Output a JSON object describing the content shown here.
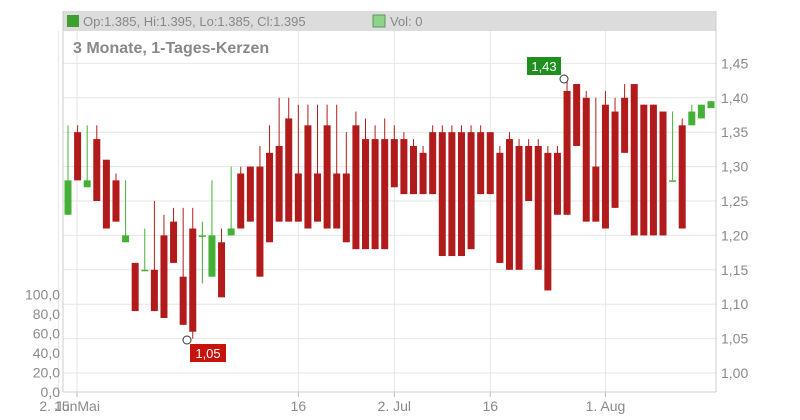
{
  "header": {
    "ohlc_text": "Op:1.385, Hi:1.395, Lo:1.385, Cl:1.395",
    "volume_text": "Vol: 0",
    "period_label": "3 Monate, 1-Tages-Kerzen"
  },
  "annotations": {
    "high_label": "1,43",
    "low_label": "1,05"
  },
  "colors": {
    "up": "#44b035",
    "down": "#b11b1b",
    "grid": "#e6e6e6",
    "label_high_bg": "#1f8f1f",
    "label_low_bg": "#c8120c"
  },
  "chart_data": {
    "type": "candlestick",
    "x_ticks": [
      "15. Mai",
      "2. Jun",
      "16",
      "2. Jul",
      "16",
      "1. Aug"
    ],
    "y_ticks": [
      "1,45",
      "1,40",
      "1,35",
      "1,30",
      "1,25",
      "1,20",
      "1,15",
      "1,10",
      "1,05",
      "1,00"
    ],
    "volume_ticks": [
      "100,0",
      "80,0",
      "60,0",
      "40,0",
      "20,0",
      "0,0"
    ],
    "ylim": [
      0.98,
      1.48
    ],
    "volume_lim": [
      0,
      120
    ],
    "high": 1.43,
    "low": 1.05,
    "series": [
      {
        "date": "15. Mai",
        "open": 1.23,
        "high": 1.36,
        "low": 1.23,
        "close": 1.28
      },
      {
        "date": "16. Mai",
        "open": 1.35,
        "high": 1.36,
        "low": 1.28,
        "close": 1.28
      },
      {
        "date": "17. Mai",
        "open": 1.27,
        "high": 1.36,
        "low": 1.27,
        "close": 1.28
      },
      {
        "date": "18. Mai",
        "open": 1.34,
        "high": 1.36,
        "low": 1.25,
        "close": 1.25
      },
      {
        "date": "21. Mai",
        "open": 1.31,
        "high": 1.31,
        "low": 1.21,
        "close": 1.21
      },
      {
        "date": "22. Mai",
        "open": 1.28,
        "high": 1.29,
        "low": 1.22,
        "close": 1.22
      },
      {
        "date": "23. Mai",
        "open": 1.19,
        "high": 1.28,
        "low": 1.19,
        "close": 1.2
      },
      {
        "date": "24. Mai",
        "open": 1.16,
        "high": 1.16,
        "low": 1.09,
        "close": 1.09
      },
      {
        "date": "25. Mai",
        "open": 1.15,
        "high": 1.21,
        "low": 1.15,
        "close": 1.15
      },
      {
        "date": "28. Mai",
        "open": 1.15,
        "high": 1.25,
        "low": 1.09,
        "close": 1.09
      },
      {
        "date": "29. Mai",
        "open": 1.2,
        "high": 1.23,
        "low": 1.08,
        "close": 1.08
      },
      {
        "date": "30. Mai",
        "open": 1.22,
        "high": 1.24,
        "low": 1.16,
        "close": 1.16
      },
      {
        "date": "31. Mai",
        "open": 1.14,
        "high": 1.24,
        "low": 1.07,
        "close": 1.07
      },
      {
        "date": "1. Jun",
        "open": 1.21,
        "high": 1.24,
        "low": 1.05,
        "close": 1.06
      },
      {
        "date": "4. Jun",
        "open": 1.2,
        "high": 1.22,
        "low": 1.13,
        "close": 1.2
      },
      {
        "date": "5. Jun",
        "open": 1.14,
        "high": 1.28,
        "low": 1.14,
        "close": 1.2
      },
      {
        "date": "6. Jun",
        "open": 1.19,
        "high": 1.21,
        "low": 1.11,
        "close": 1.11
      },
      {
        "date": "7. Jun",
        "open": 1.2,
        "high": 1.3,
        "low": 1.2,
        "close": 1.21
      },
      {
        "date": "8. Jun",
        "open": 1.29,
        "high": 1.3,
        "low": 1.21,
        "close": 1.21
      },
      {
        "date": "11. Jun",
        "open": 1.3,
        "high": 1.3,
        "low": 1.22,
        "close": 1.22
      },
      {
        "date": "12. Jun",
        "open": 1.3,
        "high": 1.33,
        "low": 1.14,
        "close": 1.14
      },
      {
        "date": "13. Jun",
        "open": 1.32,
        "high": 1.36,
        "low": 1.19,
        "close": 1.19
      },
      {
        "date": "14. Jun",
        "open": 1.33,
        "high": 1.4,
        "low": 1.22,
        "close": 1.22
      },
      {
        "date": "15. Jun",
        "open": 1.37,
        "high": 1.4,
        "low": 1.22,
        "close": 1.22
      },
      {
        "date": "18. Jun",
        "open": 1.29,
        "high": 1.39,
        "low": 1.22,
        "close": 1.22
      },
      {
        "date": "19. Jun",
        "open": 1.36,
        "high": 1.39,
        "low": 1.21,
        "close": 1.21
      },
      {
        "date": "20. Jun",
        "open": 1.29,
        "high": 1.39,
        "low": 1.22,
        "close": 1.22
      },
      {
        "date": "21. Jun",
        "open": 1.36,
        "high": 1.39,
        "low": 1.21,
        "close": 1.21
      },
      {
        "date": "22. Jun",
        "open": 1.29,
        "high": 1.39,
        "low": 1.21,
        "close": 1.21
      },
      {
        "date": "25. Jun",
        "open": 1.29,
        "high": 1.35,
        "low": 1.19,
        "close": 1.19
      },
      {
        "date": "26. Jun",
        "open": 1.36,
        "high": 1.38,
        "low": 1.18,
        "close": 1.18
      },
      {
        "date": "27. Jun",
        "open": 1.34,
        "high": 1.37,
        "low": 1.18,
        "close": 1.18
      },
      {
        "date": "28. Jun",
        "open": 1.34,
        "high": 1.36,
        "low": 1.18,
        "close": 1.18
      },
      {
        "date": "29. Jun",
        "open": 1.34,
        "high": 1.37,
        "low": 1.18,
        "close": 1.18
      },
      {
        "date": "2. Jul",
        "open": 1.34,
        "high": 1.36,
        "low": 1.27,
        "close": 1.27
      },
      {
        "date": "3. Jul",
        "open": 1.34,
        "high": 1.35,
        "low": 1.26,
        "close": 1.26
      },
      {
        "date": "4. Jul",
        "open": 1.33,
        "high": 1.34,
        "low": 1.26,
        "close": 1.26
      },
      {
        "date": "5. Jul",
        "open": 1.32,
        "high": 1.33,
        "low": 1.26,
        "close": 1.26
      },
      {
        "date": "6. Jul",
        "open": 1.35,
        "high": 1.36,
        "low": 1.26,
        "close": 1.26
      },
      {
        "date": "9. Jul",
        "open": 1.35,
        "high": 1.36,
        "low": 1.17,
        "close": 1.17
      },
      {
        "date": "10. Jul",
        "open": 1.35,
        "high": 1.36,
        "low": 1.17,
        "close": 1.17
      },
      {
        "date": "11. Jul",
        "open": 1.35,
        "high": 1.36,
        "low": 1.17,
        "close": 1.17
      },
      {
        "date": "12. Jul",
        "open": 1.35,
        "high": 1.36,
        "low": 1.18,
        "close": 1.18
      },
      {
        "date": "13. Jul",
        "open": 1.35,
        "high": 1.36,
        "low": 1.26,
        "close": 1.26
      },
      {
        "date": "16. Jul",
        "open": 1.35,
        "high": 1.35,
        "low": 1.26,
        "close": 1.26
      },
      {
        "date": "17. Jul",
        "open": 1.32,
        "high": 1.33,
        "low": 1.16,
        "close": 1.16
      },
      {
        "date": "18. Jul",
        "open": 1.34,
        "high": 1.35,
        "low": 1.15,
        "close": 1.15
      },
      {
        "date": "19. Jul",
        "open": 1.33,
        "high": 1.34,
        "low": 1.15,
        "close": 1.15
      },
      {
        "date": "20. Jul",
        "open": 1.33,
        "high": 1.34,
        "low": 1.25,
        "close": 1.25
      },
      {
        "date": "23. Jul",
        "open": 1.33,
        "high": 1.34,
        "low": 1.15,
        "close": 1.15
      },
      {
        "date": "24. Jul",
        "open": 1.32,
        "high": 1.33,
        "low": 1.12,
        "close": 1.12
      },
      {
        "date": "25. Jul",
        "open": 1.32,
        "high": 1.33,
        "low": 1.23,
        "close": 1.23
      },
      {
        "date": "26. Jul",
        "open": 1.41,
        "high": 1.43,
        "low": 1.23,
        "close": 1.23
      },
      {
        "date": "27. Jul",
        "open": 1.42,
        "high": 1.42,
        "low": 1.33,
        "close": 1.33
      },
      {
        "date": "30. Jul",
        "open": 1.4,
        "high": 1.41,
        "low": 1.22,
        "close": 1.22
      },
      {
        "date": "31. Jul",
        "open": 1.3,
        "high": 1.4,
        "low": 1.22,
        "close": 1.22
      },
      {
        "date": "1. Aug",
        "open": 1.39,
        "high": 1.41,
        "low": 1.21,
        "close": 1.21
      },
      {
        "date": "2. Aug",
        "open": 1.38,
        "high": 1.4,
        "low": 1.24,
        "close": 1.24
      },
      {
        "date": "3. Aug",
        "open": 1.4,
        "high": 1.42,
        "low": 1.32,
        "close": 1.32
      },
      {
        "date": "6. Aug",
        "open": 1.42,
        "high": 1.42,
        "low": 1.2,
        "close": 1.2
      },
      {
        "date": "7. Aug",
        "open": 1.39,
        "high": 1.39,
        "low": 1.2,
        "close": 1.2
      },
      {
        "date": "8. Aug",
        "open": 1.39,
        "high": 1.39,
        "low": 1.2,
        "close": 1.2
      },
      {
        "date": "9. Aug",
        "open": 1.38,
        "high": 1.38,
        "low": 1.2,
        "close": 1.2
      },
      {
        "date": "10. Aug",
        "open": 1.28,
        "high": 1.38,
        "low": 1.28,
        "close": 1.28
      },
      {
        "date": "13. Aug",
        "open": 1.36,
        "high": 1.37,
        "low": 1.21,
        "close": 1.21
      },
      {
        "date": "14. Aug",
        "open": 1.36,
        "high": 1.39,
        "low": 1.36,
        "close": 1.38
      },
      {
        "date": "15. Aug",
        "open": 1.37,
        "high": 1.39,
        "low": 1.37,
        "close": 1.39
      },
      {
        "date": "16. Aug",
        "open": 1.385,
        "high": 1.395,
        "low": 1.385,
        "close": 1.395
      }
    ]
  }
}
